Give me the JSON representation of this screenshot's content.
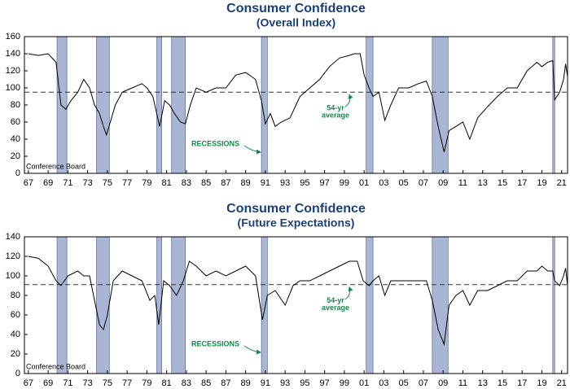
{
  "chart_data": [
    {
      "type": "line",
      "title": "Consumer Confidence",
      "subtitle": "(Overall Index)",
      "source": "Conference Board",
      "annotations": {
        "recessions": "RECESSIONS",
        "average_label": [
          "54-yr",
          "average"
        ]
      },
      "average": 95,
      "recessions": [
        [
          1969.9,
          1970.9
        ],
        [
          1973.9,
          1975.2
        ],
        [
          1980.0,
          1980.5
        ],
        [
          1981.5,
          1982.9
        ],
        [
          1990.6,
          1991.2
        ],
        [
          2001.2,
          2001.9
        ],
        [
          2007.9,
          2009.5
        ],
        [
          2020.1,
          2020.3
        ]
      ],
      "color": "#000000",
      "recession_color": "#a9b5d3",
      "x": [
        1967,
        1968,
        1969,
        1969.8,
        1970.3,
        1970.8,
        1971.3,
        1972,
        1972.6,
        1973.2,
        1973.7,
        1974.2,
        1974.6,
        1974.9,
        1975.3,
        1975.8,
        1976.5,
        1977.5,
        1978.5,
        1979,
        1979.6,
        1980.3,
        1980.8,
        1981.3,
        1981.8,
        1982.4,
        1982.9,
        1983.4,
        1984,
        1985,
        1986,
        1987,
        1988,
        1989,
        1990,
        1990.6,
        1991,
        1991.5,
        1992,
        1992.6,
        1993.5,
        1994.5,
        1995.5,
        1996.5,
        1997.5,
        1998.5,
        1999.5,
        2000,
        2000.6,
        2001,
        2001.5,
        2001.9,
        2002.5,
        2003.1,
        2003.7,
        2004.5,
        2005.5,
        2006.5,
        2007.3,
        2007.9,
        2008.5,
        2009.1,
        2009.6,
        2010.3,
        2011,
        2011.7,
        2012.5,
        2013.5,
        2014.5,
        2015.5,
        2016.5,
        2017.5,
        2018.5,
        2019,
        2019.6,
        2020.1,
        2020.3,
        2020.8,
        2021.2,
        2021.4,
        2021.6
      ],
      "values": [
        140,
        138,
        140,
        130,
        80,
        75,
        85,
        95,
        110,
        100,
        80,
        70,
        55,
        45,
        60,
        80,
        95,
        100,
        105,
        100,
        90,
        55,
        85,
        80,
        70,
        60,
        58,
        80,
        100,
        95,
        100,
        100,
        115,
        118,
        110,
        85,
        58,
        70,
        55,
        60,
        65,
        90,
        100,
        110,
        125,
        135,
        138,
        140,
        140,
        115,
        100,
        90,
        95,
        62,
        80,
        100,
        100,
        105,
        108,
        90,
        55,
        25,
        50,
        55,
        60,
        40,
        65,
        78,
        90,
        100,
        100,
        120,
        130,
        125,
        130,
        132,
        86,
        95,
        110,
        128,
        113
      ],
      "xlim": [
        1966.6,
        2021.6
      ],
      "xticks": [
        {
          "value": 1967,
          "label": "67"
        },
        {
          "value": 1969,
          "label": "69"
        },
        {
          "value": 1971,
          "label": "71"
        },
        {
          "value": 1973,
          "label": "73"
        },
        {
          "value": 1975,
          "label": "75"
        },
        {
          "value": 1977,
          "label": "77"
        },
        {
          "value": 1979,
          "label": "79"
        },
        {
          "value": 1981,
          "label": "81"
        },
        {
          "value": 1983,
          "label": "83"
        },
        {
          "value": 1985,
          "label": "85"
        },
        {
          "value": 1987,
          "label": "87"
        },
        {
          "value": 1989,
          "label": "89"
        },
        {
          "value": 1991,
          "label": "91"
        },
        {
          "value": 1993,
          "label": "93"
        },
        {
          "value": 1995,
          "label": "95"
        },
        {
          "value": 1997,
          "label": "97"
        },
        {
          "value": 1999,
          "label": "99"
        },
        {
          "value": 2001,
          "label": "01"
        },
        {
          "value": 2003,
          "label": "03"
        },
        {
          "value": 2005,
          "label": "05"
        },
        {
          "value": 2007,
          "label": "07"
        },
        {
          "value": 2009,
          "label": "09"
        },
        {
          "value": 2011,
          "label": "11"
        },
        {
          "value": 2013,
          "label": "13"
        },
        {
          "value": 2015,
          "label": "15"
        },
        {
          "value": 2017,
          "label": "17"
        },
        {
          "value": 2019,
          "label": "19"
        },
        {
          "value": 2021,
          "label": "21"
        }
      ],
      "ylim": [
        0,
        160
      ],
      "yticks": [
        0,
        20,
        40,
        60,
        80,
        100,
        120,
        140,
        160
      ]
    },
    {
      "type": "line",
      "title": "Consumer Confidence",
      "subtitle": "(Future Expectations)",
      "source": "Conference Board",
      "annotations": {
        "recessions": "RECESSIONS",
        "average_label": [
          "54-yr",
          "average"
        ]
      },
      "average": 91,
      "recessions": [
        [
          1969.9,
          1970.9
        ],
        [
          1973.9,
          1975.2
        ],
        [
          1980.0,
          1980.5
        ],
        [
          1981.5,
          1982.9
        ],
        [
          1990.6,
          1991.2
        ],
        [
          2001.2,
          2001.9
        ],
        [
          2007.9,
          2009.5
        ],
        [
          2020.1,
          2020.3
        ]
      ],
      "color": "#000000",
      "recession_color": "#a9b5d3",
      "x": [
        1967,
        1968,
        1969,
        1969.8,
        1970.3,
        1971,
        1972,
        1972.6,
        1973.2,
        1973.8,
        1974.2,
        1974.6,
        1975,
        1975.6,
        1976.5,
        1977.5,
        1978.5,
        1979.3,
        1979.8,
        1980.2,
        1980.7,
        1981.3,
        1982,
        1982.7,
        1983.3,
        1984,
        1985,
        1986,
        1987,
        1988,
        1989,
        1990,
        1990.7,
        1991.2,
        1992,
        1993,
        1993.8,
        1994.5,
        1995.5,
        1996.5,
        1997.5,
        1998.5,
        1999.5,
        2000.3,
        2000.9,
        2001.5,
        2001.9,
        2002.5,
        2003.1,
        2003.7,
        2004.5,
        2005.5,
        2006.5,
        2007.3,
        2007.9,
        2008.5,
        2009.1,
        2009.6,
        2010.3,
        2011,
        2011.7,
        2012.5,
        2013.5,
        2014.5,
        2015.5,
        2016.5,
        2017.5,
        2018.5,
        2019,
        2019.6,
        2020.1,
        2020.3,
        2020.8,
        2021.2,
        2021.4,
        2021.6
      ],
      "values": [
        120,
        118,
        110,
        95,
        90,
        100,
        105,
        100,
        100,
        70,
        50,
        45,
        60,
        95,
        105,
        100,
        95,
        75,
        80,
        50,
        95,
        90,
        80,
        95,
        115,
        110,
        100,
        105,
        100,
        105,
        110,
        100,
        55,
        80,
        85,
        70,
        90,
        95,
        95,
        100,
        105,
        110,
        115,
        115,
        95,
        90,
        95,
        100,
        80,
        95,
        95,
        95,
        95,
        95,
        75,
        45,
        30,
        70,
        80,
        85,
        70,
        85,
        85,
        90,
        95,
        95,
        105,
        105,
        110,
        105,
        105,
        95,
        90,
        100,
        108,
        90
      ],
      "xlim": [
        1966.6,
        2021.6
      ],
      "xticks": [
        {
          "value": 1967,
          "label": "67"
        },
        {
          "value": 1969,
          "label": "69"
        },
        {
          "value": 1971,
          "label": "71"
        },
        {
          "value": 1973,
          "label": "73"
        },
        {
          "value": 1975,
          "label": "75"
        },
        {
          "value": 1977,
          "label": "77"
        },
        {
          "value": 1979,
          "label": "79"
        },
        {
          "value": 1981,
          "label": "81"
        },
        {
          "value": 1983,
          "label": "83"
        },
        {
          "value": 1985,
          "label": "85"
        },
        {
          "value": 1987,
          "label": "87"
        },
        {
          "value": 1989,
          "label": "89"
        },
        {
          "value": 1991,
          "label": "91"
        },
        {
          "value": 1993,
          "label": "93"
        },
        {
          "value": 1995,
          "label": "95"
        },
        {
          "value": 1997,
          "label": "97"
        },
        {
          "value": 1999,
          "label": "99"
        },
        {
          "value": 2001,
          "label": "01"
        },
        {
          "value": 2003,
          "label": "03"
        },
        {
          "value": 2005,
          "label": "05"
        },
        {
          "value": 2007,
          "label": "07"
        },
        {
          "value": 2009,
          "label": "09"
        },
        {
          "value": 2011,
          "label": "11"
        },
        {
          "value": 2013,
          "label": "13"
        },
        {
          "value": 2015,
          "label": "15"
        },
        {
          "value": 2017,
          "label": "17"
        },
        {
          "value": 2019,
          "label": "19"
        },
        {
          "value": 2021,
          "label": "21"
        }
      ],
      "ylim": [
        0,
        140
      ],
      "yticks": [
        0,
        20,
        40,
        60,
        80,
        100,
        120,
        140
      ]
    }
  ]
}
